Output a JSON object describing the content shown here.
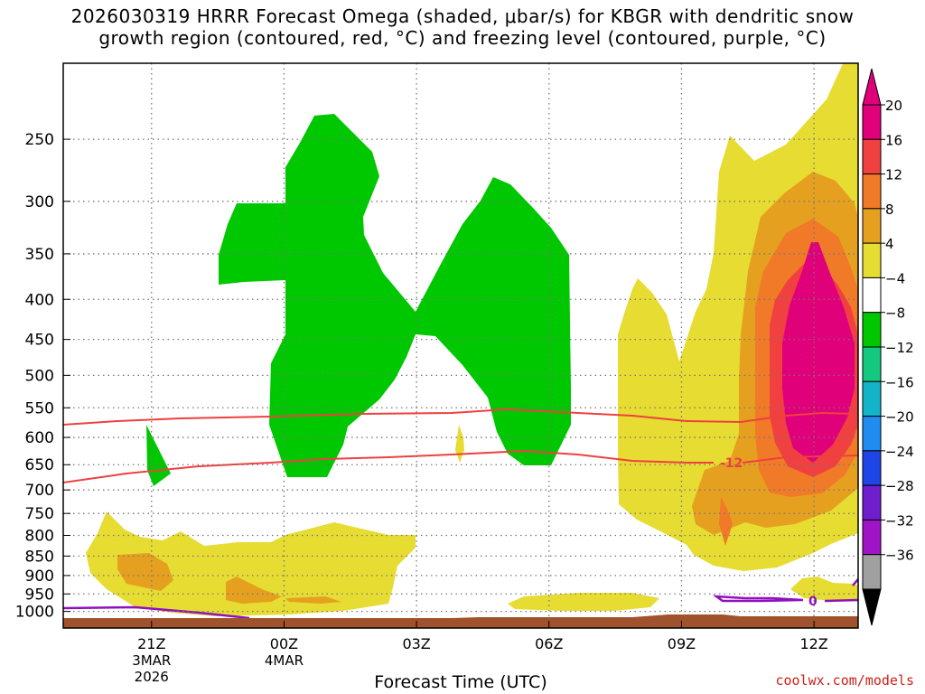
{
  "title": {
    "line1": "2026030319 HRRR Forecast Omega (shaded, μbar/s) for KBGR with dendritic snow",
    "line2": "growth region (contoured, red, °C) and freezing level (contoured, purple, °C)"
  },
  "credit": "coolwx.com/models",
  "chart_data": {
    "type": "time-height cross section (filled contour)",
    "xlabel": "Forecast Time (UTC)",
    "x_ticks": [
      {
        "label": "21Z",
        "sub1": "3MAR",
        "sub2": "2026",
        "hours": 0
      },
      {
        "label": "00Z",
        "sub1": "4MAR",
        "sub2": "",
        "hours": 3
      },
      {
        "label": "03Z",
        "sub1": "",
        "sub2": "",
        "hours": 6
      },
      {
        "label": "06Z",
        "sub1": "",
        "sub2": "",
        "hours": 9
      },
      {
        "label": "09Z",
        "sub1": "",
        "sub2": "",
        "hours": 12
      },
      {
        "label": "12Z",
        "sub1": "",
        "sub2": "",
        "hours": 15
      }
    ],
    "y_scale": "log-pressure, inverted",
    "y_ticks_hPa": [
      250,
      300,
      350,
      400,
      450,
      500,
      550,
      600,
      650,
      700,
      750,
      800,
      850,
      900,
      950,
      1000
    ],
    "x_range_hours": [
      -2,
      16
    ],
    "y_range_hPa": [
      200,
      1050
    ],
    "grid": true,
    "colorbar": {
      "ticks": [
        "20",
        "16",
        "12",
        "8",
        "4",
        "−4",
        "−8",
        "−12",
        "−16",
        "−20",
        "−24",
        "−28",
        "−32",
        "−36"
      ],
      "bins": [
        {
          "color": "#e0007a"
        },
        {
          "color": "#f04040"
        },
        {
          "color": "#f07a28"
        },
        {
          "color": "#e6a020"
        },
        {
          "color": "#e6dc32"
        },
        {
          "color": "#ffffff"
        },
        {
          "color": "#00c800"
        },
        {
          "color": "#14c880"
        },
        {
          "color": "#14b4c8"
        },
        {
          "color": "#1e8cf0"
        },
        {
          "color": "#1e46e6"
        },
        {
          "color": "#6e1ecc"
        },
        {
          "color": "#a014c8"
        },
        {
          "color": "#a0a0a0"
        }
      ],
      "over_color": "#e0007a",
      "under_color": "#000000"
    },
    "contour_labels": {
      "dgz_low": "-12",
      "freezing": "0"
    },
    "colors": {
      "dgz_contour": "#ee4040",
      "freezing_contour": "#9010c0",
      "terrain": "#a0522d",
      "grid": "#777777"
    }
  }
}
